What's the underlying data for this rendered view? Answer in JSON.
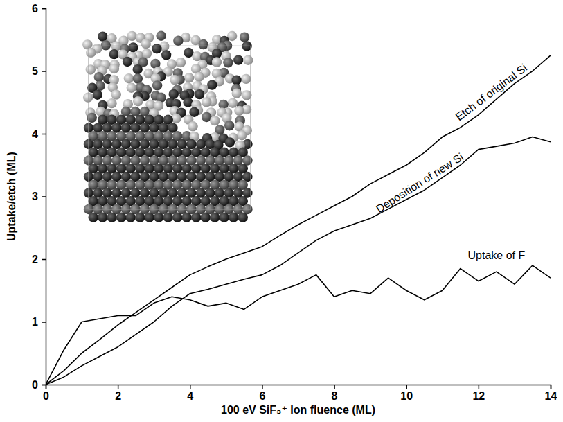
{
  "chart_data": {
    "type": "line",
    "x_label": "100 eV SiF₃⁺ Ion fluence (ML)",
    "y_label": "Uptake/etch (ML)",
    "x": [
      0,
      0.5,
      1,
      1.5,
      2,
      2.5,
      3,
      3.5,
      4,
      4.5,
      5,
      5.5,
      6,
      6.5,
      7,
      7.5,
      8,
      8.5,
      9,
      9.5,
      10,
      10.5,
      11,
      11.5,
      12,
      12.5,
      13,
      13.5,
      14
    ],
    "series": [
      {
        "name": "Etch of original Si",
        "color": "#000000",
        "values": [
          0,
          0.22,
          0.5,
          0.72,
          0.95,
          1.15,
          1.35,
          1.55,
          1.75,
          1.88,
          2.0,
          2.1,
          2.2,
          2.38,
          2.55,
          2.7,
          2.85,
          3.0,
          3.2,
          3.35,
          3.5,
          3.7,
          3.95,
          4.1,
          4.3,
          4.55,
          4.8,
          5.0,
          5.25
        ]
      },
      {
        "name": "Deposition of new Si",
        "color": "#000000",
        "values": [
          0,
          0.12,
          0.3,
          0.45,
          0.6,
          0.8,
          1.0,
          1.25,
          1.45,
          1.52,
          1.6,
          1.68,
          1.75,
          1.9,
          2.1,
          2.3,
          2.45,
          2.55,
          2.65,
          2.8,
          2.95,
          3.1,
          3.3,
          3.5,
          3.75,
          3.8,
          3.85,
          3.95,
          3.87
        ]
      },
      {
        "name": "Uptake of F",
        "color": "#000000",
        "values": [
          0,
          0.55,
          1.0,
          1.05,
          1.1,
          1.1,
          1.3,
          1.4,
          1.35,
          1.25,
          1.3,
          1.2,
          1.4,
          1.5,
          1.6,
          1.75,
          1.4,
          1.5,
          1.45,
          1.7,
          1.5,
          1.35,
          1.5,
          1.85,
          1.65,
          1.8,
          1.6,
          1.9,
          1.7
        ]
      }
    ],
    "xlim": [
      0,
      14
    ],
    "xticks": [
      0,
      2,
      4,
      6,
      8,
      10,
      12,
      14
    ],
    "ylim": [
      0,
      6
    ],
    "yticks": [
      0,
      1,
      2,
      3,
      4,
      5,
      6
    ],
    "grid": false
  }
}
